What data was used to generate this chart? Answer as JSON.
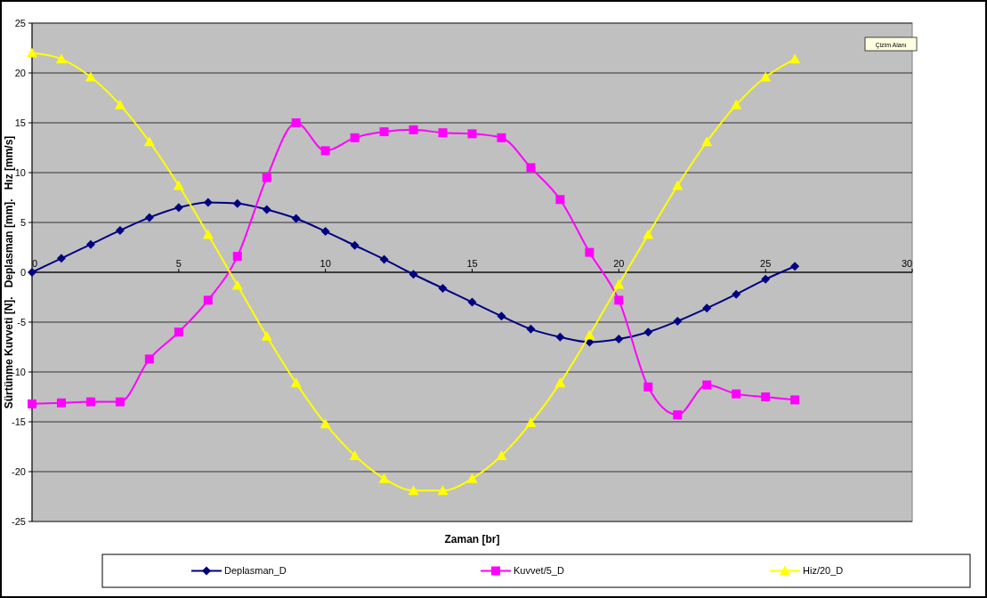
{
  "chart_data": {
    "type": "line",
    "xlabel": "Zaman [br]",
    "ylabel": "Sürtünme Kuvveti [N].   Deplasman [mm].   Hız [mm/s]",
    "x": [
      0,
      1,
      2,
      3,
      4,
      5,
      6,
      7,
      8,
      9,
      10,
      11,
      12,
      13,
      14,
      15,
      16,
      17,
      18,
      19,
      20,
      21,
      22,
      23,
      24,
      25,
      26
    ],
    "xlim": [
      0,
      30
    ],
    "xticks": [
      0,
      5,
      10,
      15,
      20,
      25,
      30
    ],
    "ylim": [
      -25,
      25
    ],
    "yticks": [
      -25,
      -20,
      -15,
      -10,
      -5,
      0,
      5,
      10,
      15,
      20,
      25
    ],
    "grid": "y",
    "legend": "bottom",
    "annotations": [
      "Çizim Alanı"
    ],
    "series": [
      {
        "name": "Deplasman_D",
        "color": "#000080",
        "marker": "diamond",
        "values": [
          0,
          1.4,
          2.8,
          4.2,
          5.5,
          6.5,
          7.0,
          6.9,
          6.3,
          5.4,
          4.1,
          2.7,
          1.3,
          -0.2,
          -1.6,
          -3.0,
          -4.4,
          -5.7,
          -6.5,
          -7.0,
          -6.7,
          -6.0,
          -4.9,
          -3.6,
          -2.2,
          -0.7,
          0.6
        ]
      },
      {
        "name": "Kuvvet/5_D",
        "color": "#ff00ff",
        "marker": "square",
        "values": [
          -13.2,
          -13.1,
          -13.0,
          -13.0,
          -8.7,
          -6.0,
          -2.8,
          1.6,
          9.5,
          15.0,
          12.2,
          13.5,
          14.1,
          14.3,
          14.0,
          13.9,
          13.5,
          10.5,
          7.3,
          2.0,
          -2.8,
          -11.5,
          -14.3,
          -11.3,
          -12.2,
          -12.5,
          -12.8
        ]
      },
      {
        "name": "Hiz/20_D",
        "color": "#ffff00",
        "marker": "triangle",
        "values": [
          22.0,
          21.4,
          19.6,
          16.8,
          13.1,
          8.7,
          3.8,
          -1.3,
          -6.4,
          -11.1,
          -15.2,
          -18.4,
          -20.7,
          -21.9,
          -21.9,
          -20.7,
          -18.4,
          -15.1,
          -11.1,
          -6.3,
          -1.2,
          3.8,
          8.7,
          13.1,
          16.8,
          19.6,
          21.4
        ]
      }
    ]
  }
}
